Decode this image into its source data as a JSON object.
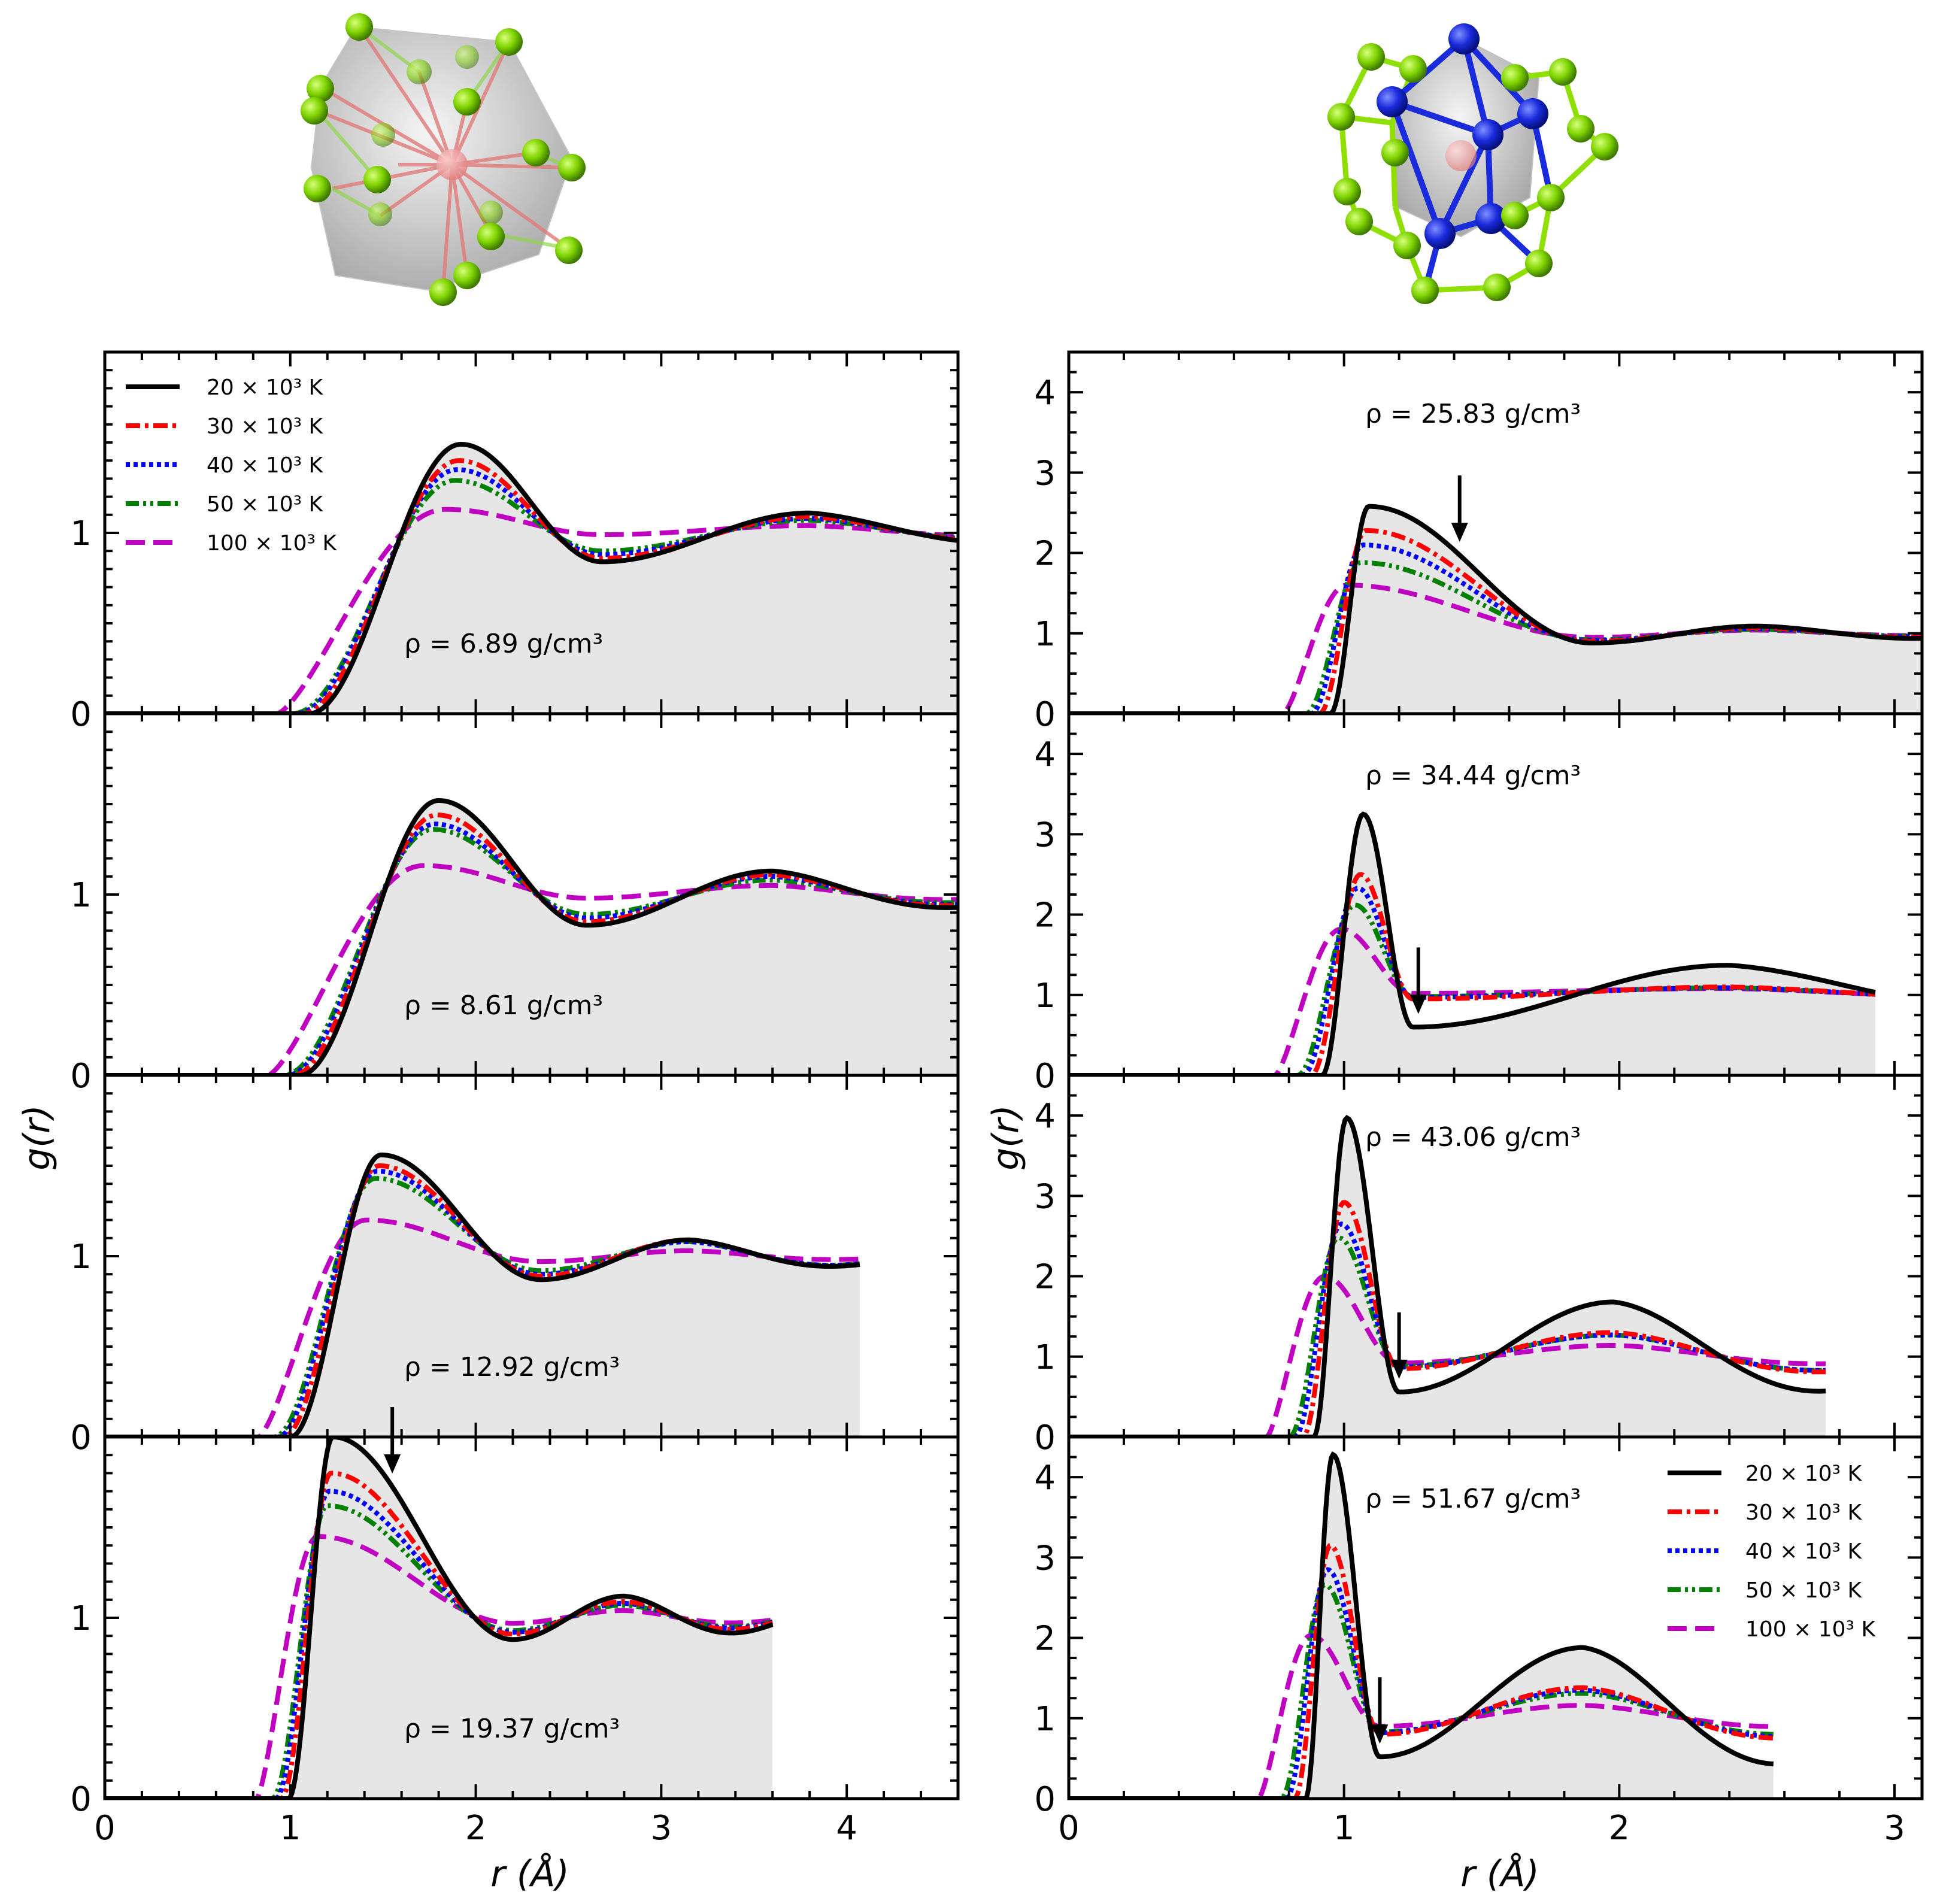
{
  "figure": {
    "left_column": {
      "x_range": [
        0,
        4.6
      ],
      "x_ticks": [
        "0",
        "1",
        "2",
        "3",
        "4"
      ],
      "y_ticks": [
        "0",
        "1"
      ],
      "y_range": [
        0,
        2.0
      ]
    },
    "right_column": {
      "x_range": [
        0,
        3.1
      ],
      "x_ticks": [
        "0",
        "1",
        "2",
        "3"
      ],
      "y_ticks": [
        "0",
        "1",
        "2",
        "3",
        "4"
      ],
      "y_range": [
        0,
        4.5
      ]
    },
    "xlabel": "r (Å)",
    "ylabel": "g(r)"
  },
  "legend": {
    "entries": [
      {
        "label": "20 × 10³ K",
        "color": "#000000",
        "dash": "solid"
      },
      {
        "label": "30 × 10³ K",
        "color": "#ff0000",
        "dash": "dashdot"
      },
      {
        "label": "40 × 10³ K",
        "color": "#0000ff",
        "dash": "dotted"
      },
      {
        "label": "50 × 10³ K",
        "color": "#008000",
        "dash": "dashdotdot"
      },
      {
        "label": "100 × 10³ K",
        "color": "#c000c0",
        "dash": "dashed"
      }
    ]
  },
  "structures": {
    "left": {
      "description_icons": [
        "green-atom",
        "red-center-atom",
        "polyhedron"
      ]
    },
    "right": {
      "description_icons": [
        "green-atom",
        "blue-atom",
        "red-center-atom",
        "polyhedron"
      ]
    }
  },
  "chart_data": [
    {
      "type": "line",
      "panel": "left-1",
      "density": "ρ = 6.89 g/cm³",
      "r_cut": 4.6,
      "r0": 1.1,
      "peak1": {
        "r": 1.92,
        "g": [
          1.49,
          1.4,
          1.35,
          1.29,
          1.13
        ]
      },
      "min1": {
        "r": 2.68,
        "g": [
          0.84,
          0.86,
          0.88,
          0.9,
          0.99
        ]
      },
      "peak2": {
        "r": 3.8,
        "g": [
          1.11,
          1.09,
          1.08,
          1.07,
          1.04
        ]
      },
      "arrow_r": null
    },
    {
      "type": "line",
      "panel": "left-2",
      "density": "ρ = 8.61 g/cm³",
      "r_cut": 4.6,
      "r0": 1.05,
      "peak1": {
        "r": 1.8,
        "g": [
          1.52,
          1.44,
          1.39,
          1.36,
          1.16
        ]
      },
      "min1": {
        "r": 2.6,
        "g": [
          0.83,
          0.85,
          0.87,
          0.89,
          0.98
        ]
      },
      "peak2": {
        "r": 3.6,
        "g": [
          1.13,
          1.11,
          1.1,
          1.08,
          1.05
        ]
      },
      "arrow_r": null
    },
    {
      "type": "line",
      "panel": "left-3",
      "density": "ρ = 12.92 g/cm³",
      "r_cut": 4.07,
      "r0": 1.0,
      "peak1": {
        "r": 1.49,
        "g": [
          1.56,
          1.5,
          1.47,
          1.43,
          1.2
        ]
      },
      "min1": {
        "r": 2.35,
        "g": [
          0.87,
          0.89,
          0.9,
          0.92,
          0.97
        ]
      },
      "peak2": {
        "r": 3.15,
        "g": [
          1.09,
          1.09,
          1.08,
          1.08,
          1.03
        ]
      },
      "arrow_r": null
    },
    {
      "type": "line",
      "panel": "left-4",
      "density": "ρ = 19.37 g/cm³",
      "r_cut": 3.6,
      "r0": 0.99,
      "peak1": {
        "r": 1.23,
        "g": [
          2.0,
          1.8,
          1.7,
          1.62,
          1.45
        ]
      },
      "min1": {
        "r": 2.2,
        "g": [
          0.88,
          0.91,
          0.92,
          0.93,
          0.97
        ]
      },
      "peak2": {
        "r": 2.8,
        "g": [
          1.12,
          1.09,
          1.08,
          1.07,
          1.04
        ]
      },
      "arrow_r": 1.55
    },
    {
      "type": "line",
      "panel": "right-1",
      "density": "ρ = 25.83 g/cm³",
      "r_cut": 3.1,
      "r0": 0.95,
      "peak1": {
        "r": 1.09,
        "g": [
          2.58,
          2.28,
          2.1,
          1.88,
          1.6
        ]
      },
      "min1": {
        "r": 1.9,
        "g": [
          0.88,
          0.9,
          0.91,
          0.92,
          0.95
        ]
      },
      "peak2": {
        "r": 2.5,
        "g": [
          1.09,
          1.07,
          1.06,
          1.05,
          1.04
        ]
      },
      "arrow_r": 1.42
    },
    {
      "type": "line",
      "panel": "right-2",
      "density": "ρ = 34.44 g/cm³",
      "r_cut": 2.93,
      "r0": 0.92,
      "peak1": {
        "r": 1.07,
        "g": [
          3.25,
          2.5,
          2.33,
          2.12,
          1.82
        ]
      },
      "min1": {
        "r": 1.25,
        "g": [
          0.6,
          0.95,
          0.97,
          0.98,
          1.02
        ]
      },
      "peak2": {
        "r": 2.4,
        "g": [
          1.37,
          1.1,
          1.09,
          1.09,
          1.08
        ]
      },
      "arrow_r": 1.27
    },
    {
      "type": "line",
      "panel": "right-3",
      "density": "ρ = 43.06 g/cm³",
      "r_cut": 2.75,
      "r0": 0.89,
      "peak1": {
        "r": 1.01,
        "g": [
          3.97,
          2.92,
          2.65,
          2.48,
          2.0
        ]
      },
      "min1": {
        "r": 1.2,
        "g": [
          0.56,
          0.85,
          0.87,
          0.88,
          0.92
        ]
      },
      "peak2": {
        "r": 1.98,
        "g": [
          1.68,
          1.3,
          1.27,
          1.27,
          1.14
        ]
      },
      "arrow_r": 1.2
    },
    {
      "type": "line",
      "panel": "right-4",
      "density": "ρ = 51.67 g/cm³",
      "r_cut": 2.56,
      "r0": 0.86,
      "peak1": {
        "r": 0.96,
        "g": [
          4.28,
          3.15,
          2.85,
          2.66,
          2.03
        ]
      },
      "min1": {
        "r": 1.13,
        "g": [
          0.52,
          0.8,
          0.82,
          0.83,
          0.9
        ]
      },
      "peak2": {
        "r": 1.87,
        "g": [
          1.88,
          1.38,
          1.35,
          1.31,
          1.16
        ]
      },
      "arrow_r": 1.13
    }
  ]
}
